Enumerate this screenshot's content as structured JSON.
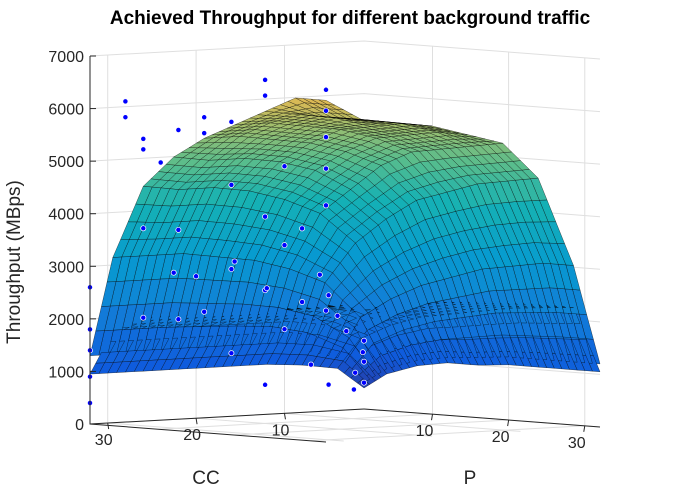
{
  "chart_data": {
    "type": "surface3d",
    "title": "Achieved Throughput for different background traffic",
    "zlabel": "Throughput (MBps)",
    "xlabel": "CC",
    "ylabel": "P",
    "x_ticks": [
      "10",
      "20",
      "30"
    ],
    "y_ticks": [
      "10",
      "20",
      "30"
    ],
    "z_ticks": [
      "0",
      "1000",
      "2000",
      "3000",
      "4000",
      "5000",
      "6000",
      "7000"
    ],
    "xlim": [
      1,
      32
    ],
    "ylim": [
      1,
      32
    ],
    "zlim": [
      0,
      7000
    ],
    "grid": true,
    "colormap": "parula",
    "marker_color": "#0000ff",
    "surfaces": [
      {
        "x": [
          1,
          4,
          8,
          12,
          16,
          20,
          24,
          28,
          32
        ],
        "y": [
          1,
          4,
          8,
          12,
          16,
          20,
          24,
          28,
          32
        ],
        "z": [
          [
            500,
            800,
            1000,
            1100,
            1150,
            1200,
            1200,
            1200,
            1200
          ],
          [
            1000,
            1800,
            2200,
            2500,
            2700,
            2900,
            3000,
            3100,
            3100
          ],
          [
            1200,
            2500,
            3300,
            3800,
            4200,
            4400,
            4600,
            4700,
            4800
          ],
          [
            1300,
            2800,
            3900,
            4400,
            4900,
            5200,
            5300,
            5400,
            5500
          ],
          [
            1300,
            3000,
            4200,
            4800,
            5200,
            5500,
            5600,
            5700,
            5700
          ],
          [
            1300,
            3100,
            4400,
            5000,
            5400,
            5700,
            5800,
            5900,
            5900
          ],
          [
            1300,
            3200,
            4500,
            5100,
            5500,
            5800,
            6000,
            6000,
            6000
          ],
          [
            1300,
            3200,
            4500,
            5100,
            5600,
            5900,
            6100,
            6100,
            6100
          ],
          [
            1300,
            3200,
            4600,
            5200,
            5600,
            5900,
            6200,
            6500,
            6500
          ]
        ]
      },
      {
        "x": [
          1,
          4,
          8,
          12,
          16,
          20,
          24,
          28,
          32
        ],
        "y": [
          1,
          4,
          8,
          12,
          16,
          20,
          24,
          28,
          32
        ],
        "z": [
          [
            400,
            700,
            900,
            1000,
            1000,
            1050,
            1050,
            1050,
            1050
          ],
          [
            800,
            1400,
            1700,
            1900,
            2000,
            2100,
            2200,
            2250,
            2300
          ],
          [
            900,
            1700,
            2000,
            2100,
            2200,
            2300,
            2350,
            2400,
            2400
          ],
          [
            950,
            1800,
            2100,
            2200,
            2300,
            2350,
            2400,
            2400,
            2400
          ],
          [
            950,
            1800,
            2100,
            2200,
            2300,
            2350,
            2400,
            2450,
            2450
          ],
          [
            950,
            1800,
            2100,
            2200,
            2300,
            2400,
            2400,
            2450,
            2450
          ],
          [
            950,
            1800,
            2100,
            2200,
            2300,
            2400,
            2450,
            2450,
            2450
          ],
          [
            950,
            1800,
            2100,
            2200,
            2300,
            2400,
            2450,
            2450,
            2450
          ],
          [
            950,
            1800,
            2100,
            2200,
            2300,
            2400,
            2450,
            2450,
            2450
          ]
        ]
      }
    ],
    "points": [
      [
        1,
        1,
        500
      ],
      [
        1,
        1,
        900
      ],
      [
        1,
        1,
        1300
      ],
      [
        2,
        1,
        700
      ],
      [
        2,
        2,
        1100
      ],
      [
        3,
        1,
        1500
      ],
      [
        3,
        2,
        400
      ],
      [
        4,
        1,
        1800
      ],
      [
        5,
        1,
        2200
      ],
      [
        6,
        1,
        2600
      ],
      [
        8,
        1,
        3500
      ],
      [
        8,
        1,
        2100
      ],
      [
        10,
        1,
        4700
      ],
      [
        10,
        1,
        3200
      ],
      [
        10,
        1,
        1600
      ],
      [
        16,
        1,
        5600
      ],
      [
        16,
        1,
        4400
      ],
      [
        16,
        1,
        2800
      ],
      [
        16,
        1,
        1200
      ],
      [
        22,
        1,
        5500
      ],
      [
        22,
        1,
        3600
      ],
      [
        22,
        1,
        1900
      ],
      [
        28,
        1,
        6100
      ],
      [
        28,
        1,
        5800
      ],
      [
        32,
        1,
        2600
      ],
      [
        32,
        1,
        1800
      ],
      [
        32,
        1,
        1400
      ],
      [
        32,
        1,
        900
      ],
      [
        32,
        1,
        400
      ],
      [
        32,
        8,
        5500
      ],
      [
        32,
        8,
        5300
      ],
      [
        32,
        8,
        3800
      ],
      [
        32,
        8,
        2100
      ],
      [
        32,
        16,
        6000
      ],
      [
        32,
        16,
        5700
      ],
      [
        32,
        16,
        2300
      ],
      [
        32,
        24,
        6800
      ],
      [
        32,
        24,
        6500
      ],
      [
        32,
        24,
        4200
      ],
      [
        32,
        24,
        2800
      ],
      [
        32,
        24,
        1000
      ],
      [
        32,
        32,
        6700
      ],
      [
        32,
        32,
        6300
      ],
      [
        32,
        32,
        5800
      ],
      [
        32,
        32,
        5200
      ],
      [
        32,
        32,
        4500
      ],
      [
        32,
        32,
        2500
      ],
      [
        5,
        1,
        500
      ],
      [
        7,
        1,
        900
      ],
      [
        12,
        1,
        2400
      ],
      [
        20,
        1,
        2700
      ],
      [
        24,
        1,
        4900
      ],
      [
        32,
        12,
        3000
      ],
      [
        32,
        20,
        3300
      ]
    ]
  }
}
